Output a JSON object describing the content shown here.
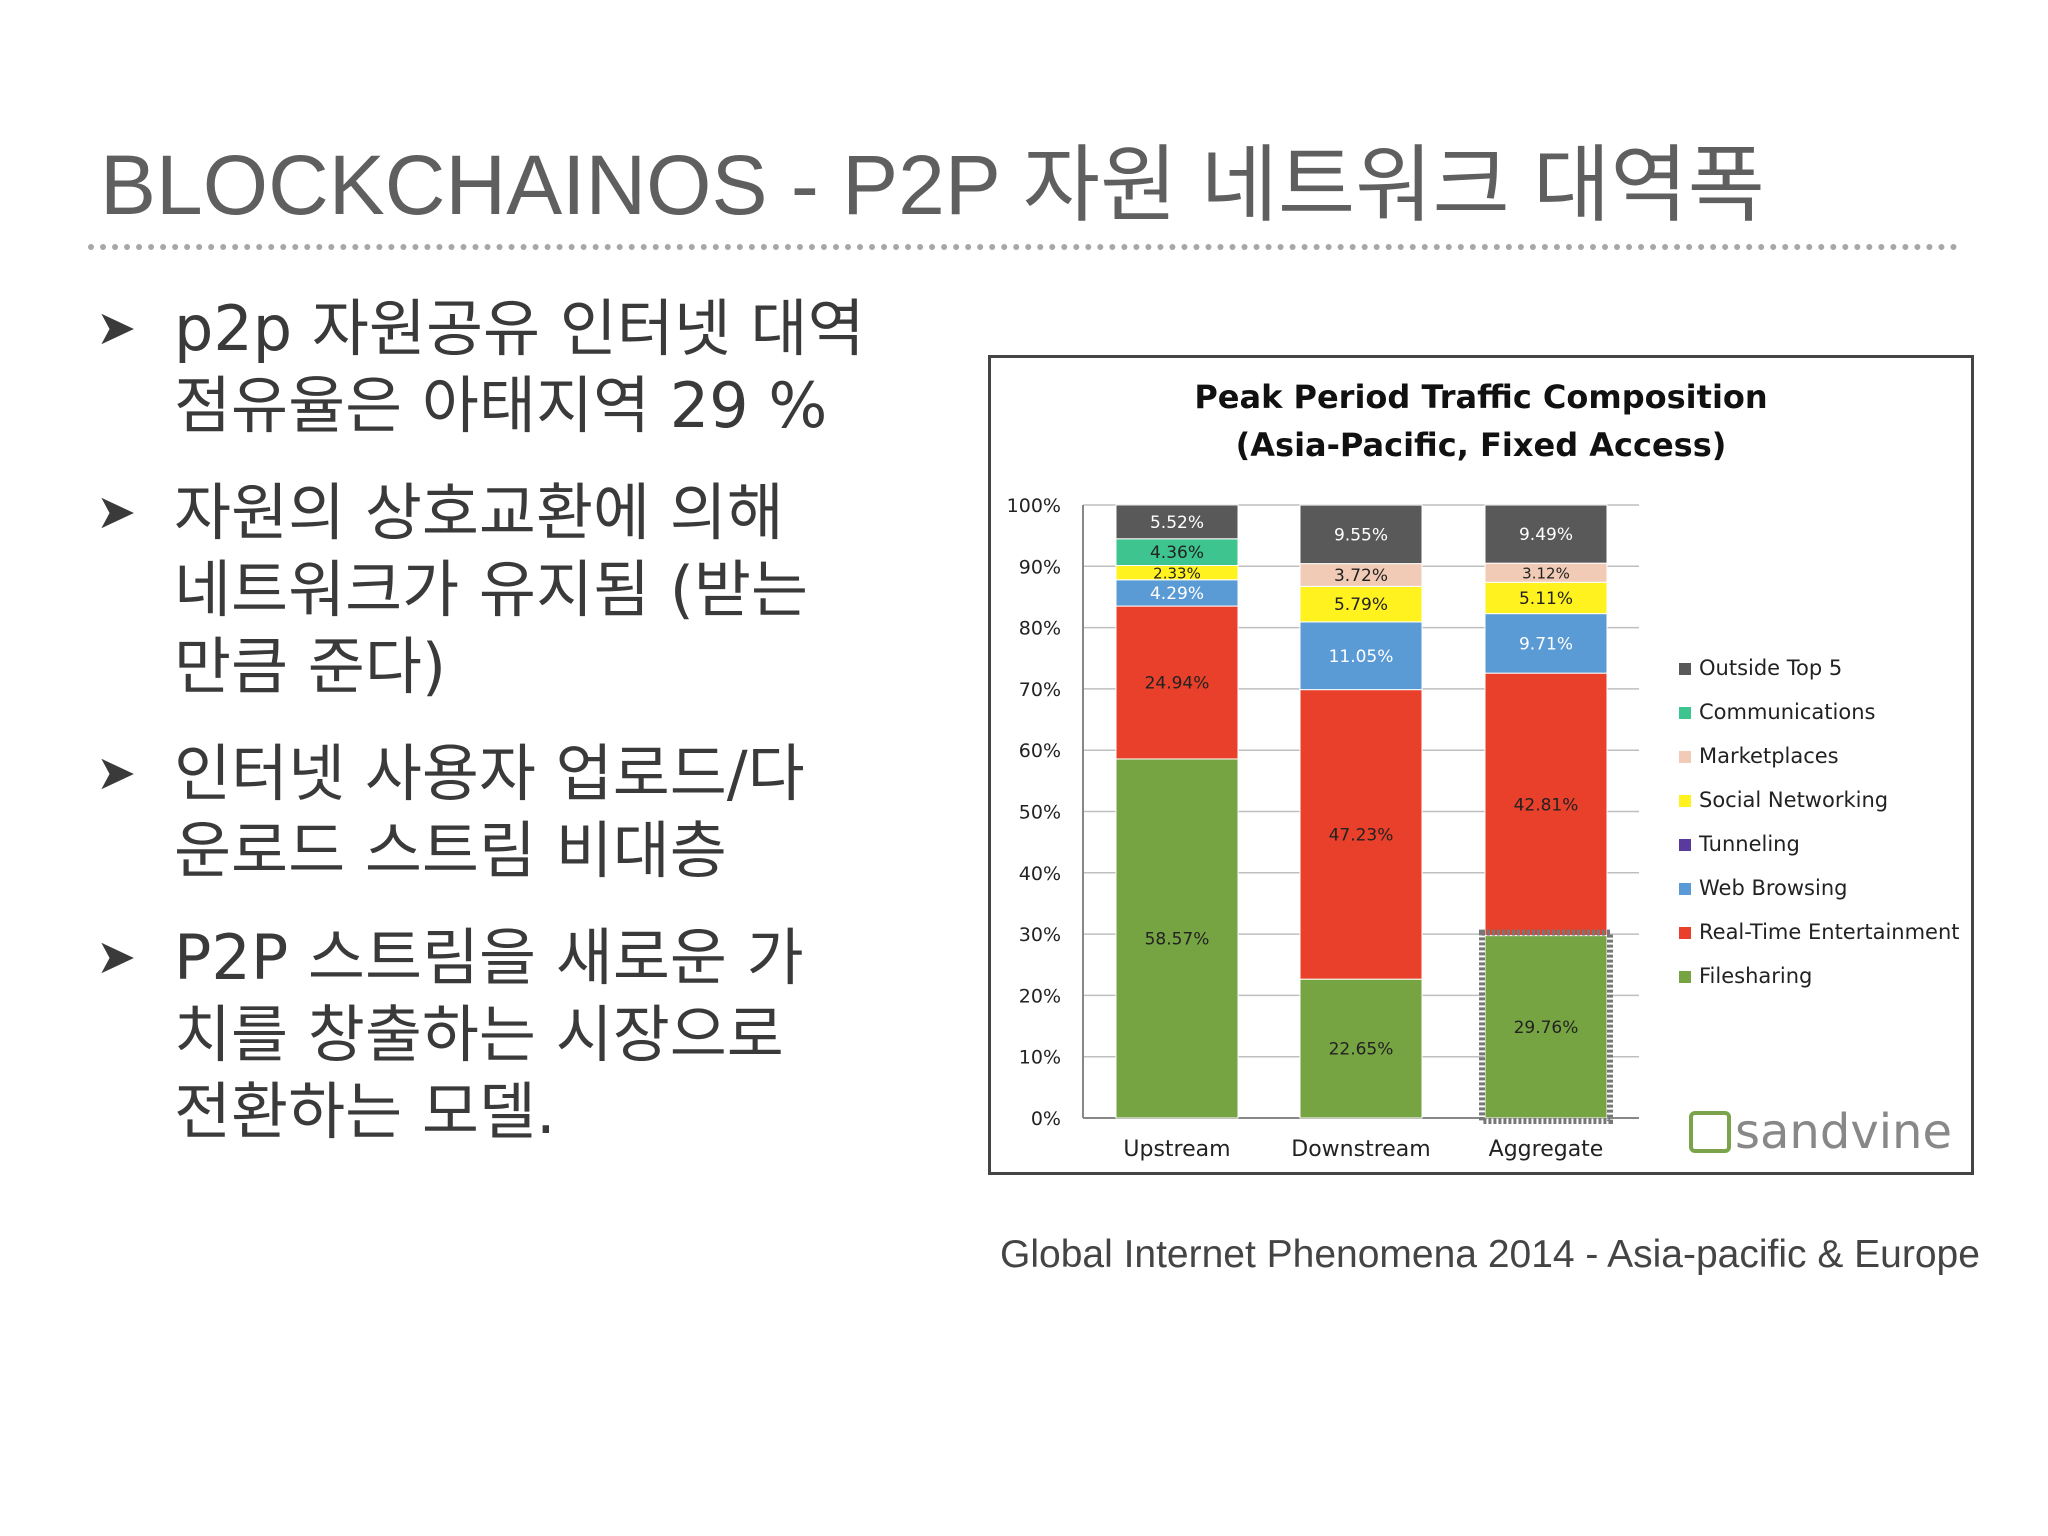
{
  "slide": {
    "title": "BLOCKCHAINOS - P2P 자원 네트워크 대역폭",
    "bullet_marker": "➤",
    "bullets": [
      [
        "p2p 자원공유 인터넷 대역",
        "점유율은 아태지역 29 %"
      ],
      [
        "자원의 상호교환에 의해",
        "네트워크가 유지됨 (받는",
        "만큼 준다)"
      ],
      [
        "인터넷 사용자 업로드/다",
        "운로드 스트림 비대층"
      ],
      [
        "P2P 스트림을 새로운 가",
        "치를 창출하는 시장으로",
        "전환하는 모델."
      ]
    ],
    "caption": "Global Internet Phenomena 2014 - Asia-pacific & Europe"
  },
  "chart_data": {
    "type": "bar",
    "stacked": true,
    "title": "Peak Period Traffic Composition",
    "subtitle": "(Asia-Pacific, Fixed Access)",
    "categories": [
      "Upstream",
      "Downstream",
      "Aggregate"
    ],
    "ylim": [
      0,
      100
    ],
    "yticks": [
      "0%",
      "10%",
      "20%",
      "30%",
      "40%",
      "50%",
      "60%",
      "70%",
      "80%",
      "90%",
      "100%"
    ],
    "grid": true,
    "legend_position": "right",
    "highlight": {
      "category": "Aggregate",
      "series": "Filesharing"
    },
    "watermark": "sandvine",
    "series": [
      {
        "name": "Filesharing",
        "color": "#77a442",
        "values": [
          58.57,
          22.65,
          29.76
        ],
        "labels": [
          "58.57%",
          "22.65%",
          "29.76%"
        ]
      },
      {
        "name": "Real-Time Entertainment",
        "color": "#e8402a",
        "values": [
          24.94,
          47.23,
          42.81
        ],
        "labels": [
          "24.94%",
          "47.23%",
          "42.81%"
        ]
      },
      {
        "name": "Web Browsing",
        "color": "#5b9bd5",
        "values": [
          4.29,
          11.05,
          9.71
        ],
        "labels": [
          "4.29%",
          "11.05%",
          "9.71%"
        ]
      },
      {
        "name": "Tunneling",
        "color": "#5b3a9e",
        "values": [
          0,
          0,
          0
        ],
        "labels": [
          "",
          "",
          ""
        ]
      },
      {
        "name": "Social Networking",
        "color": "#fff21f",
        "values": [
          2.33,
          5.79,
          5.11
        ],
        "labels": [
          "2.33%",
          "5.79%",
          "5.11%"
        ]
      },
      {
        "name": "Marketplaces",
        "color": "#f1cbb5",
        "values": [
          0,
          3.72,
          3.12
        ],
        "labels": [
          "",
          "3.72%",
          "3.12%"
        ]
      },
      {
        "name": "Communications",
        "color": "#3dc48f",
        "values": [
          4.36,
          0,
          0
        ],
        "labels": [
          "4.36%",
          "",
          ""
        ]
      },
      {
        "name": "Outside Top 5",
        "color": "#595959",
        "values": [
          5.52,
          9.55,
          9.49
        ],
        "labels": [
          "5.52%",
          "9.55%",
          "9.49%"
        ]
      }
    ],
    "legend_order": [
      "Outside Top 5",
      "Communications",
      "Marketplaces",
      "Social Networking",
      "Tunneling",
      "Web Browsing",
      "Real-Time Entertainment",
      "Filesharing"
    ]
  }
}
